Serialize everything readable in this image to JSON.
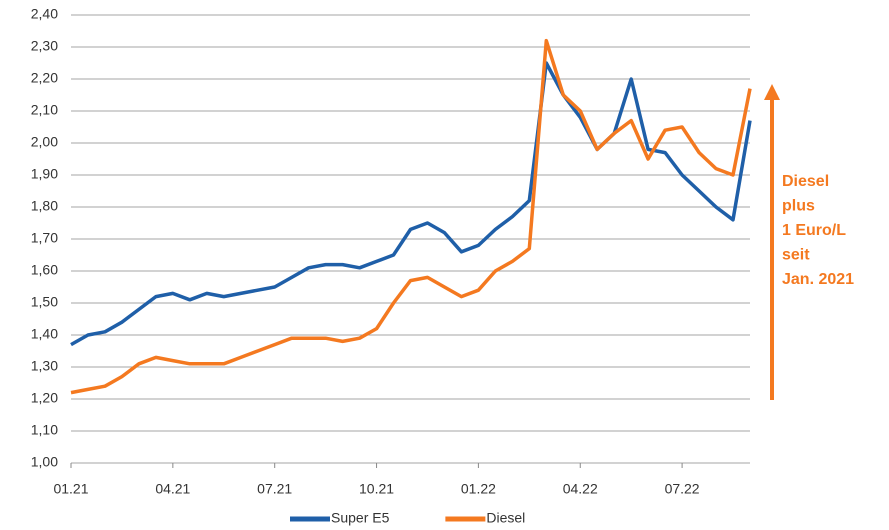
{
  "chart_data": {
    "type": "line",
    "categories": [
      "01.21",
      null,
      null,
      null,
      null,
      null,
      "04.21",
      null,
      null,
      null,
      null,
      null,
      "07.21",
      null,
      null,
      null,
      null,
      null,
      "10.21",
      null,
      null,
      null,
      null,
      null,
      "01.22",
      null,
      null,
      null,
      null,
      null,
      "04.22",
      null,
      null,
      null,
      null,
      null,
      "07.22",
      null,
      null,
      null,
      null
    ],
    "series": [
      {
        "name": "Super E5",
        "color": "#1f5fa8",
        "values": [
          1.37,
          1.4,
          1.41,
          1.44,
          1.48,
          1.52,
          1.53,
          1.51,
          1.53,
          1.52,
          1.53,
          1.54,
          1.55,
          1.58,
          1.61,
          1.62,
          1.62,
          1.61,
          1.63,
          1.65,
          1.73,
          1.75,
          1.72,
          1.66,
          1.68,
          1.73,
          1.77,
          1.82,
          2.25,
          2.15,
          2.08,
          1.98,
          2.03,
          2.2,
          1.98,
          1.97,
          1.9,
          1.85,
          1.8,
          1.76,
          2.07
        ]
      },
      {
        "name": "Diesel",
        "color": "#f47920",
        "values": [
          1.22,
          1.23,
          1.24,
          1.27,
          1.31,
          1.33,
          1.32,
          1.31,
          1.31,
          1.31,
          1.33,
          1.35,
          1.37,
          1.39,
          1.39,
          1.39,
          1.38,
          1.39,
          1.42,
          1.5,
          1.57,
          1.58,
          1.55,
          1.52,
          1.54,
          1.6,
          1.63,
          1.67,
          2.32,
          2.15,
          2.1,
          1.98,
          2.03,
          2.07,
          1.95,
          2.04,
          2.05,
          1.97,
          1.92,
          1.9,
          2.17
        ]
      }
    ],
    "ylim": [
      1.0,
      2.4
    ],
    "yticks": [
      {
        "value": 1.0,
        "label": "1,00"
      },
      {
        "value": 1.1,
        "label": "1,10"
      },
      {
        "value": 1.2,
        "label": "1,20"
      },
      {
        "value": 1.3,
        "label": "1,30"
      },
      {
        "value": 1.4,
        "label": "1,40"
      },
      {
        "value": 1.5,
        "label": "1,50"
      },
      {
        "value": 1.6,
        "label": "1,60"
      },
      {
        "value": 1.7,
        "label": "1,70"
      },
      {
        "value": 1.8,
        "label": "1,80"
      },
      {
        "value": 1.9,
        "label": "1,90"
      },
      {
        "value": 2.0,
        "label": "2,00"
      },
      {
        "value": 2.1,
        "label": "2,10"
      },
      {
        "value": 2.2,
        "label": "2,20"
      },
      {
        "value": 2.3,
        "label": "2,30"
      },
      {
        "value": 2.4,
        "label": "2,40"
      }
    ],
    "grid": true,
    "legend": "bottom",
    "annotation": {
      "lines": [
        "Diesel",
        "plus",
        "1 Euro/L",
        "seit",
        "Jan. 2021"
      ],
      "color": "#f47920"
    }
  }
}
